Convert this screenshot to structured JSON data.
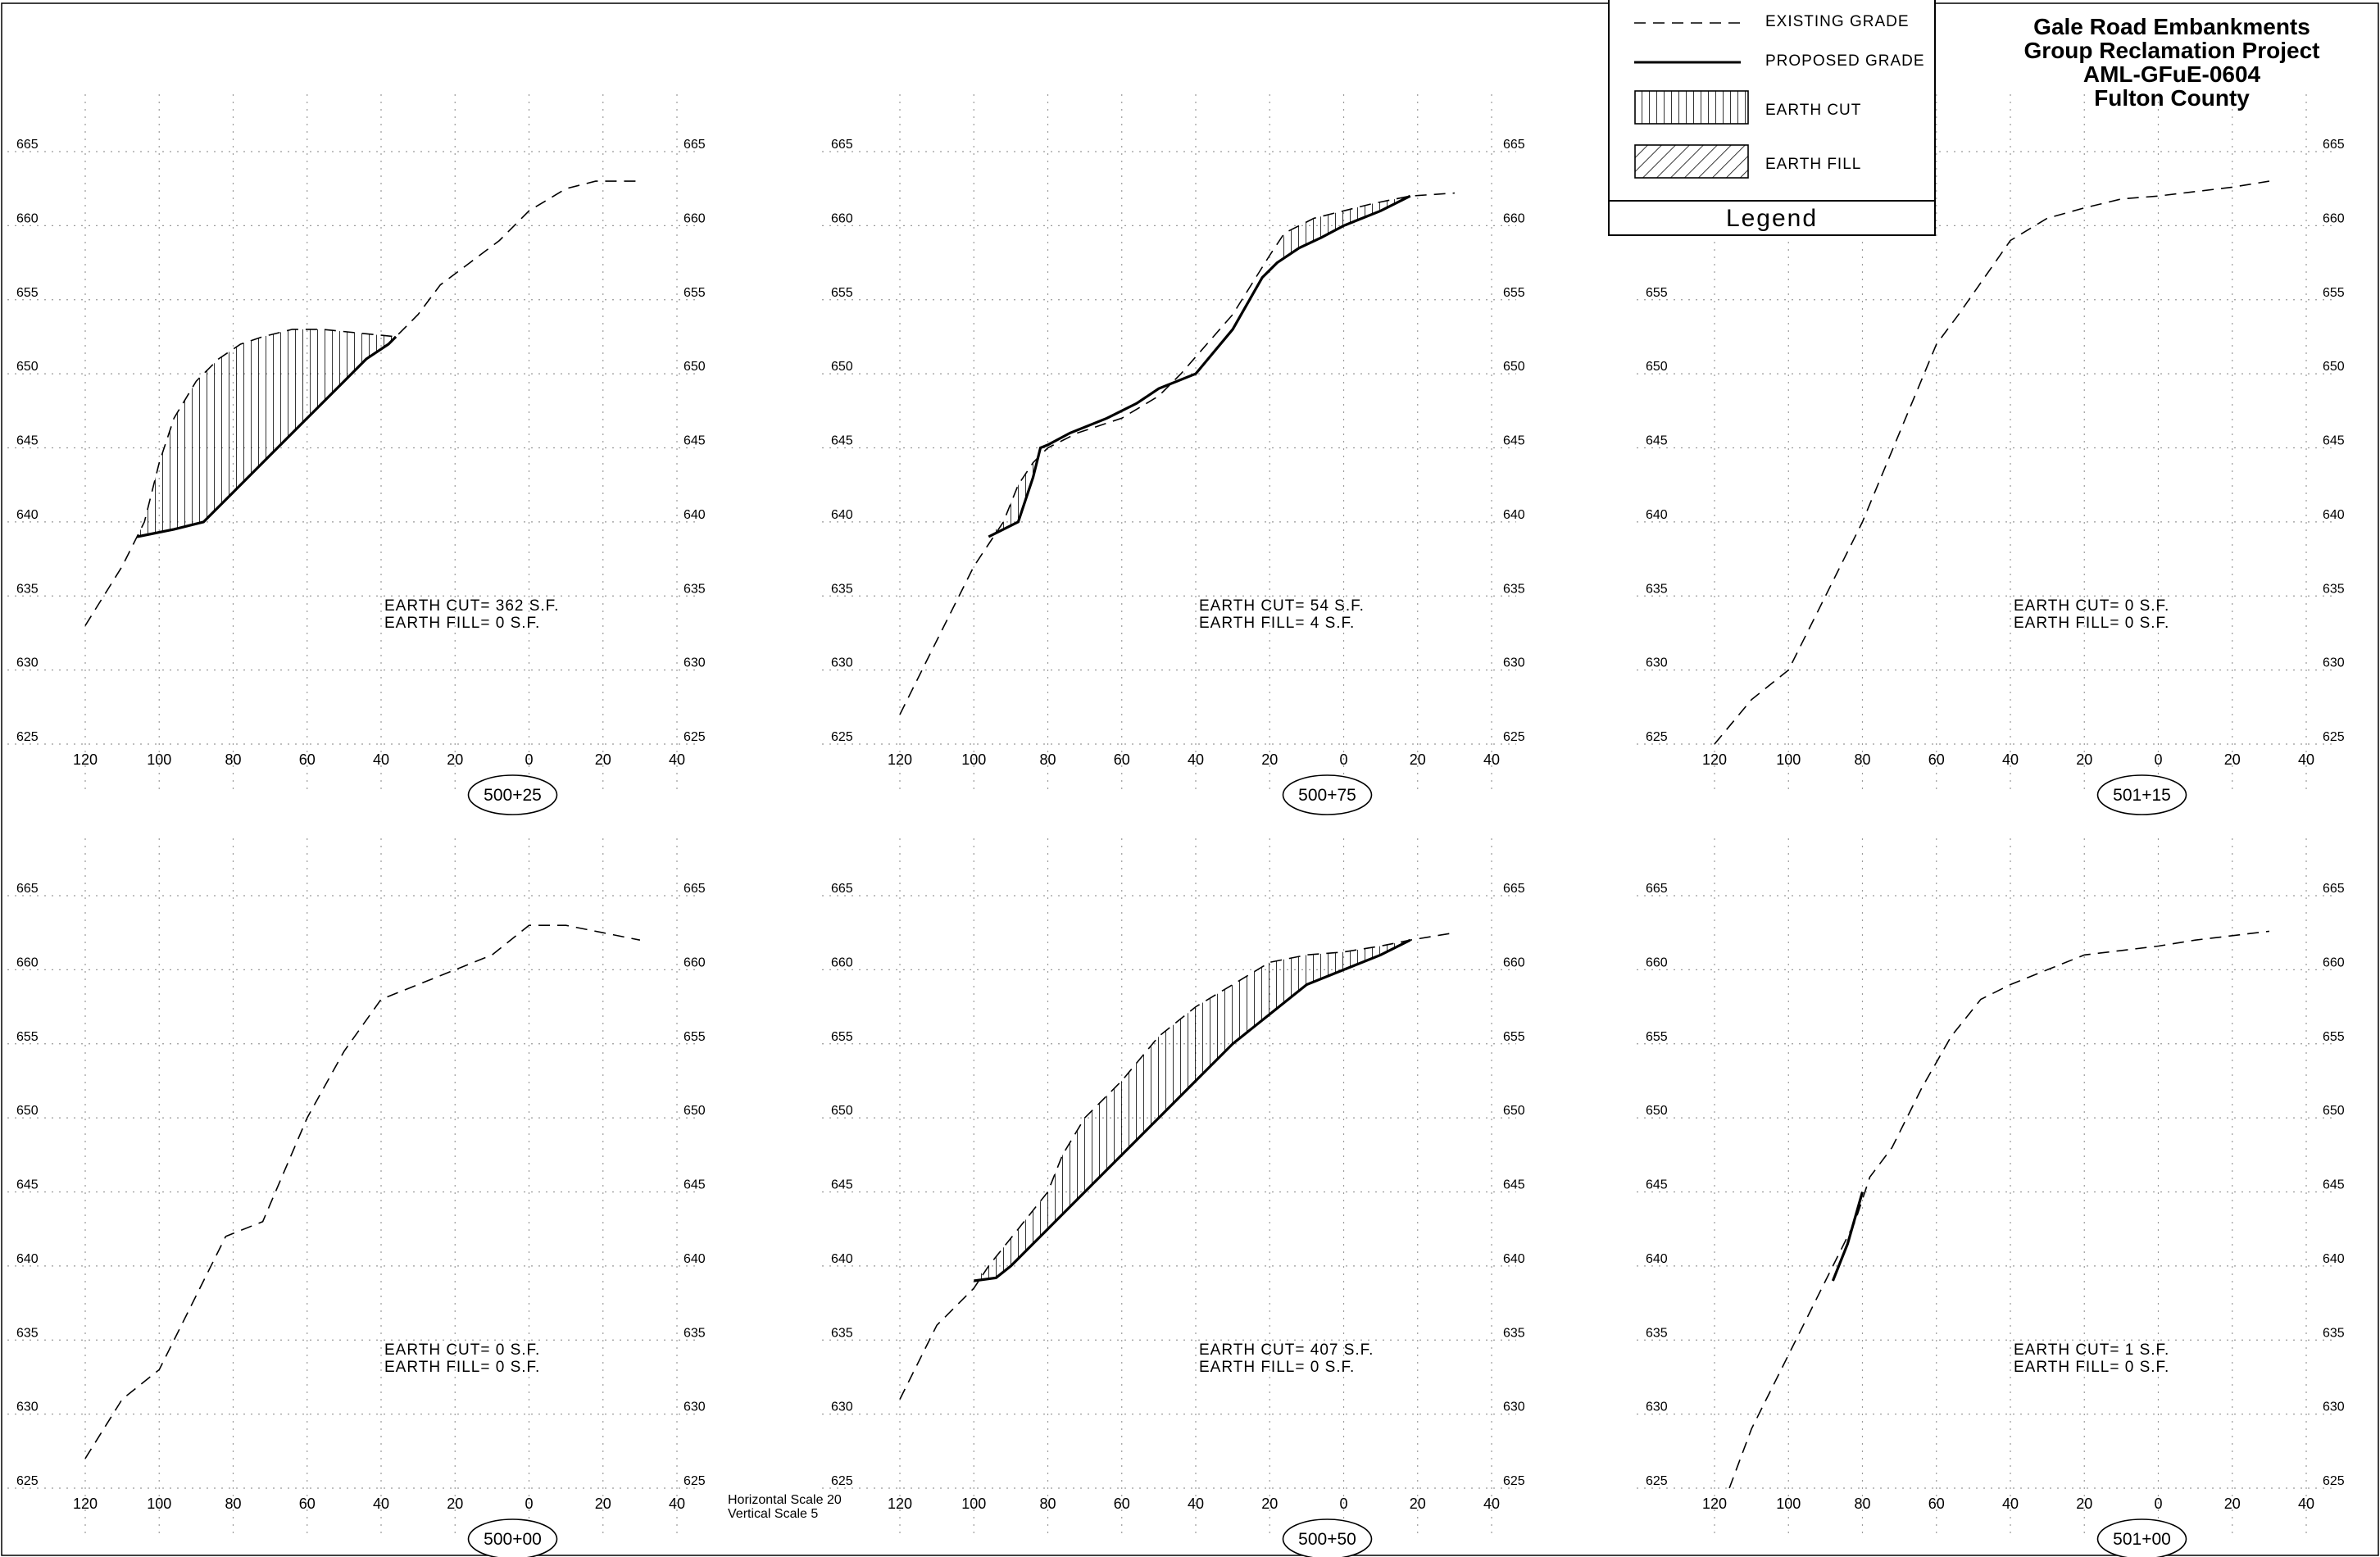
{
  "title": {
    "line1": "Gale Road Embankments",
    "line2": "Group Reclamation Project",
    "line3": "AML-GFuE-0604",
    "line4": "Fulton County"
  },
  "legend": {
    "title": "Legend",
    "items": [
      {
        "key": "existing",
        "label": "EXISTING GRADE"
      },
      {
        "key": "proposed",
        "label": "PROPOSED GRADE"
      },
      {
        "key": "cut",
        "label": "EARTH CUT"
      },
      {
        "key": "fill",
        "label": "EARTH FILL"
      }
    ]
  },
  "scale_note": {
    "horizontal": "Horizontal Scale 20",
    "vertical": "Vertical Scale 5"
  },
  "chart_data": [
    {
      "type": "line",
      "station": "500+25",
      "cut_label": "EARTH CUT= 362 S.F.",
      "fill_label": "EARTH FILL= 0 S.F.",
      "xlim": [
        120,
        -40
      ],
      "ylim": [
        625,
        665
      ],
      "xticks": [
        "120",
        "100",
        "80",
        "60",
        "40",
        "20",
        "0",
        "20",
        "40"
      ],
      "yticks": [
        "625",
        "630",
        "635",
        "640",
        "645",
        "650",
        "655",
        "660",
        "665"
      ],
      "existing": [
        [
          120,
          633
        ],
        [
          110,
          637
        ],
        [
          104,
          640
        ],
        [
          100,
          644
        ],
        [
          96,
          647
        ],
        [
          90,
          649.5
        ],
        [
          84,
          651
        ],
        [
          78,
          652
        ],
        [
          72,
          652.5
        ],
        [
          64,
          653
        ],
        [
          56,
          653
        ],
        [
          48,
          652.8
        ],
        [
          40,
          652.6
        ],
        [
          36,
          652.5
        ],
        [
          30,
          654
        ],
        [
          24,
          656
        ],
        [
          16,
          657.5
        ],
        [
          8,
          659
        ],
        [
          0,
          661
        ],
        [
          -10,
          662.5
        ],
        [
          -18,
          663
        ],
        [
          -30,
          663
        ]
      ],
      "proposed": [
        [
          106,
          639
        ],
        [
          96,
          639.5
        ],
        [
          88,
          640
        ],
        [
          80,
          642
        ],
        [
          70,
          644.5
        ],
        [
          60,
          647
        ],
        [
          50,
          649.5
        ],
        [
          44,
          651
        ],
        [
          38,
          652
        ],
        [
          36,
          652.5
        ]
      ],
      "cut": [
        [
          106,
          639
        ],
        [
          96,
          639.5
        ],
        [
          88,
          640
        ],
        [
          80,
          642
        ],
        [
          70,
          644.5
        ],
        [
          60,
          647
        ],
        [
          50,
          649.5
        ],
        [
          44,
          651
        ],
        [
          38,
          652
        ],
        [
          36,
          652.5
        ],
        [
          40,
          652.6
        ],
        [
          48,
          652.8
        ],
        [
          56,
          653
        ],
        [
          64,
          653
        ],
        [
          72,
          652.5
        ],
        [
          78,
          652
        ],
        [
          84,
          651
        ],
        [
          90,
          649.5
        ],
        [
          96,
          647
        ],
        [
          100,
          644
        ],
        [
          104,
          640
        ]
      ],
      "fill": []
    },
    {
      "type": "line",
      "station": "500+75",
      "cut_label": "EARTH CUT= 54 S.F.",
      "fill_label": "EARTH FILL= 4 S.F.",
      "xlim": [
        120,
        -40
      ],
      "ylim": [
        625,
        665
      ],
      "xticks": [
        "120",
        "100",
        "80",
        "60",
        "40",
        "20",
        "0",
        "20",
        "40"
      ],
      "yticks": [
        "625",
        "630",
        "635",
        "640",
        "645",
        "650",
        "655",
        "660",
        "665"
      ],
      "existing": [
        [
          120,
          627
        ],
        [
          110,
          632
        ],
        [
          100,
          637
        ],
        [
          96,
          638.5
        ],
        [
          92,
          640
        ],
        [
          88,
          642.5
        ],
        [
          84,
          644
        ],
        [
          80,
          645
        ],
        [
          72,
          646
        ],
        [
          60,
          647
        ],
        [
          50,
          648.5
        ],
        [
          44,
          650
        ],
        [
          30,
          654
        ],
        [
          20,
          658
        ],
        [
          16,
          659.5
        ],
        [
          8,
          660.5
        ],
        [
          0,
          661
        ],
        [
          -8,
          661.5
        ],
        [
          -18,
          662
        ],
        [
          -30,
          662.2
        ]
      ],
      "proposed": [
        [
          96,
          639
        ],
        [
          92,
          639.5
        ],
        [
          88,
          640
        ],
        [
          86,
          641.5
        ],
        [
          84,
          643
        ],
        [
          82,
          645
        ],
        [
          80,
          645.2
        ],
        [
          74,
          646
        ],
        [
          64,
          647
        ],
        [
          56,
          648
        ],
        [
          50,
          649
        ],
        [
          40,
          650
        ],
        [
          30,
          653
        ],
        [
          22,
          656.5
        ],
        [
          18,
          657.5
        ],
        [
          12,
          658.5
        ],
        [
          6,
          659.2
        ],
        [
          0,
          660
        ],
        [
          -10,
          661
        ],
        [
          -18,
          662
        ]
      ],
      "cut": [
        [
          96,
          639
        ],
        [
          92,
          639.5
        ],
        [
          88,
          640
        ],
        [
          86,
          641.5
        ],
        [
          84,
          643
        ],
        [
          82,
          645
        ],
        [
          84,
          644
        ],
        [
          88,
          642.5
        ],
        [
          92,
          640
        ]
      ],
      "cut2": [
        [
          18,
          657.5
        ],
        [
          12,
          658.5
        ],
        [
          6,
          659.2
        ],
        [
          0,
          660
        ],
        [
          -10,
          661
        ],
        [
          -18,
          662
        ],
        [
          -8,
          661.5
        ],
        [
          0,
          661
        ],
        [
          8,
          660.5
        ],
        [
          16,
          659.5
        ]
      ],
      "fill": []
    },
    {
      "type": "line",
      "station": "501+15",
      "cut_label": "EARTH CUT= 0 S.F.",
      "fill_label": "EARTH FILL= 0 S.F.",
      "xlim": [
        120,
        -40
      ],
      "ylim": [
        625,
        665
      ],
      "xticks": [
        "120",
        "100",
        "80",
        "60",
        "40",
        "20",
        "0",
        "20",
        "40"
      ],
      "yticks": [
        "625",
        "630",
        "635",
        "640",
        "645",
        "650",
        "655",
        "660",
        "665"
      ],
      "existing": [
        [
          120,
          625
        ],
        [
          110,
          628
        ],
        [
          100,
          630
        ],
        [
          90,
          635
        ],
        [
          80,
          640
        ],
        [
          70,
          646
        ],
        [
          60,
          652
        ],
        [
          54,
          654
        ],
        [
          40,
          659
        ],
        [
          30,
          660.5
        ],
        [
          20,
          661.2
        ],
        [
          10,
          661.8
        ],
        [
          0,
          662
        ],
        [
          -10,
          662.3
        ],
        [
          -20,
          662.6
        ],
        [
          -30,
          663
        ]
      ],
      "proposed": [],
      "cut": [],
      "fill": []
    },
    {
      "type": "line",
      "station": "500+00",
      "cut_label": "EARTH CUT= 0 S.F.",
      "fill_label": "EARTH FILL= 0 S.F.",
      "xlim": [
        120,
        -40
      ],
      "ylim": [
        625,
        665
      ],
      "xticks": [
        "120",
        "100",
        "80",
        "60",
        "40",
        "20",
        "0",
        "20",
        "40"
      ],
      "yticks": [
        "625",
        "630",
        "635",
        "640",
        "645",
        "650",
        "655",
        "660",
        "665"
      ],
      "existing": [
        [
          120,
          627
        ],
        [
          110,
          631
        ],
        [
          100,
          633
        ],
        [
          90,
          638
        ],
        [
          82,
          642
        ],
        [
          72,
          643
        ],
        [
          60,
          650
        ],
        [
          50,
          654.5
        ],
        [
          40,
          658
        ],
        [
          30,
          659
        ],
        [
          20,
          660
        ],
        [
          10,
          661
        ],
        [
          0,
          663
        ],
        [
          -10,
          663
        ],
        [
          -20,
          662.5
        ],
        [
          -30,
          662
        ]
      ],
      "proposed": [],
      "cut": [],
      "fill": []
    },
    {
      "type": "line",
      "station": "500+50",
      "cut_label": "EARTH CUT= 407 S.F.",
      "fill_label": "EARTH FILL= 0 S.F.",
      "xlim": [
        120,
        -40
      ],
      "ylim": [
        625,
        665
      ],
      "xticks": [
        "120",
        "100",
        "80",
        "60",
        "40",
        "20",
        "0",
        "20",
        "40"
      ],
      "yticks": [
        "625",
        "630",
        "635",
        "640",
        "645",
        "650",
        "655",
        "660",
        "665"
      ],
      "existing": [
        [
          120,
          631
        ],
        [
          110,
          636
        ],
        [
          100,
          638.5
        ],
        [
          96,
          640
        ],
        [
          88,
          642.5
        ],
        [
          80,
          645
        ],
        [
          76,
          647.5
        ],
        [
          70,
          650
        ],
        [
          60,
          652.5
        ],
        [
          50,
          655.5
        ],
        [
          40,
          657.5
        ],
        [
          30,
          659
        ],
        [
          20,
          660.5
        ],
        [
          10,
          661
        ],
        [
          0,
          661.2
        ],
        [
          -10,
          661.6
        ],
        [
          -18,
          662
        ],
        [
          -30,
          662.5
        ]
      ],
      "proposed": [
        [
          100,
          639
        ],
        [
          94,
          639.2
        ],
        [
          90,
          640
        ],
        [
          80,
          642.5
        ],
        [
          70,
          645
        ],
        [
          60,
          647.5
        ],
        [
          50,
          650
        ],
        [
          40,
          652.5
        ],
        [
          30,
          655
        ],
        [
          20,
          657
        ],
        [
          10,
          659
        ],
        [
          0,
          660
        ],
        [
          -10,
          661
        ],
        [
          -18,
          662
        ]
      ],
      "cut": [
        [
          100,
          639
        ],
        [
          94,
          639.2
        ],
        [
          90,
          640
        ],
        [
          80,
          642.5
        ],
        [
          70,
          645
        ],
        [
          60,
          647.5
        ],
        [
          50,
          650
        ],
        [
          40,
          652.5
        ],
        [
          30,
          655
        ],
        [
          20,
          657
        ],
        [
          10,
          659
        ],
        [
          0,
          660
        ],
        [
          -10,
          661
        ],
        [
          -18,
          662
        ],
        [
          -10,
          661.6
        ],
        [
          0,
          661.2
        ],
        [
          10,
          661
        ],
        [
          20,
          660.5
        ],
        [
          30,
          659
        ],
        [
          40,
          657.5
        ],
        [
          50,
          655.5
        ],
        [
          60,
          652.5
        ],
        [
          70,
          650
        ],
        [
          76,
          647.5
        ],
        [
          80,
          645
        ],
        [
          88,
          642.5
        ],
        [
          96,
          640
        ]
      ],
      "fill": []
    },
    {
      "type": "line",
      "station": "501+00",
      "cut_label": "EARTH CUT= 1 S.F.",
      "fill_label": "EARTH FILL= 0 S.F.",
      "xlim": [
        120,
        -40
      ],
      "ylim": [
        625,
        665
      ],
      "xticks": [
        "120",
        "100",
        "80",
        "60",
        "40",
        "20",
        "0",
        "20",
        "40"
      ],
      "yticks": [
        "625",
        "630",
        "635",
        "640",
        "645",
        "650",
        "655",
        "660",
        "665"
      ],
      "existing": [
        [
          116,
          625
        ],
        [
          110,
          629
        ],
        [
          100,
          634
        ],
        [
          90,
          639
        ],
        [
          82,
          643
        ],
        [
          78,
          646
        ],
        [
          72,
          648
        ],
        [
          64,
          652
        ],
        [
          56,
          655.5
        ],
        [
          48,
          658
        ],
        [
          40,
          659
        ],
        [
          30,
          660
        ],
        [
          20,
          661
        ],
        [
          10,
          661.3
        ],
        [
          0,
          661.6
        ],
        [
          -10,
          662
        ],
        [
          -20,
          662.3
        ],
        [
          -30,
          662.6
        ]
      ],
      "proposed": [
        [
          88,
          639
        ],
        [
          84,
          641.5
        ],
        [
          80,
          645
        ]
      ],
      "cut": [],
      "fill": []
    }
  ]
}
